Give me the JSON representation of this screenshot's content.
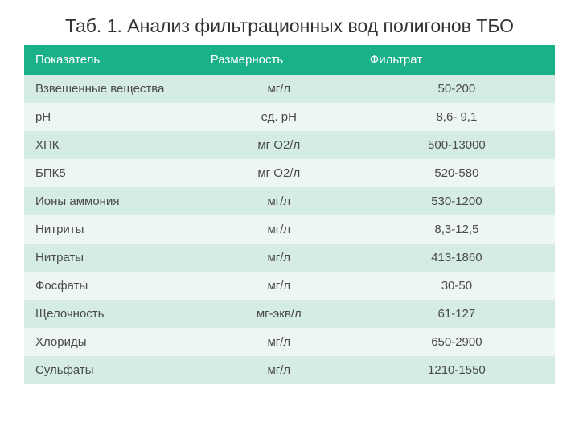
{
  "title": "Таб. 1. Анализ фильтрационных вод полигонов ТБО",
  "table": {
    "type": "table",
    "header_bg": "#1ab188",
    "header_text_color": "#ffffff",
    "row_odd_bg": "#d4ece3",
    "row_even_bg": "#edf6f3",
    "text_color": "#4a4a4a",
    "title_fontsize": 23,
    "cell_fontsize": 15,
    "columns": [
      "Показатель",
      "Размерность",
      "Фильтрат"
    ],
    "col_align": [
      "left",
      "center",
      "center"
    ],
    "col_widths_pct": [
      33,
      30,
      37
    ],
    "rows": [
      [
        "Взвешенные вещества",
        "мг/л",
        "50-200"
      ],
      [
        "рН",
        "ед. рН",
        "8,6- 9,1"
      ],
      [
        "ХПК",
        "мг О2/л",
        "500-13000"
      ],
      [
        "БПК5",
        "мг О2/л",
        "520-580"
      ],
      [
        "Ионы аммония",
        "мг/л",
        "530-1200"
      ],
      [
        "Нитриты",
        "мг/л",
        "8,3-12,5"
      ],
      [
        "Нитраты",
        "мг/л",
        "413-1860"
      ],
      [
        "Фосфаты",
        "мг/л",
        "30-50"
      ],
      [
        "Щелочность",
        "мг-экв/л",
        "61-127"
      ],
      [
        "Хлориды",
        "мг/л",
        "650-2900"
      ],
      [
        "Сульфаты",
        "мг/л",
        "1210-1550"
      ]
    ]
  }
}
